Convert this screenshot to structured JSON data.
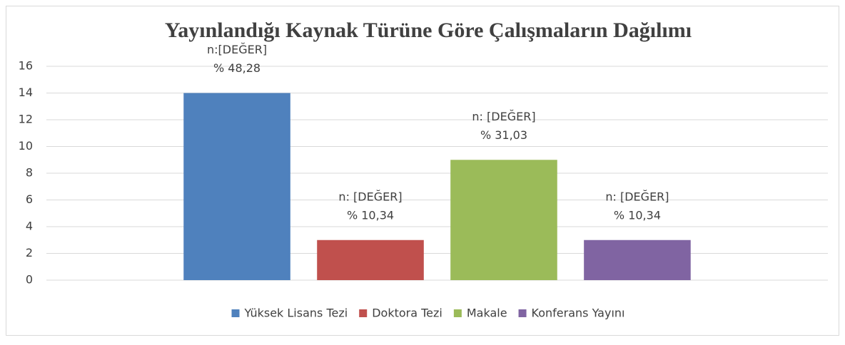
{
  "chart_data": {
    "type": "bar",
    "title": "Yayınlandığı Kaynak Türüne Göre Çalışmaların Dağılımı",
    "categories": [
      null
    ],
    "series": [
      {
        "name": "Yüksek Lisans Tezi",
        "color": "#4f81bd",
        "values": [
          14
        ],
        "label_lines": [
          "n:[DEĞER]",
          "% 48,28"
        ]
      },
      {
        "name": "Doktora Tezi",
        "color": "#c0504d",
        "values": [
          3
        ],
        "label_lines": [
          "n: [DEĞER]",
          "% 10,34"
        ]
      },
      {
        "name": "Makale",
        "color": "#9bbb59",
        "values": [
          9
        ],
        "label_lines": [
          "n: [DEĞER]",
          "% 31,03"
        ]
      },
      {
        "name": "Konferans Yayını",
        "color": "#8064a2",
        "values": [
          3
        ],
        "label_lines": [
          "n: [DEĞER]",
          "% 10,34"
        ]
      }
    ],
    "ylim": [
      0,
      16
    ],
    "yticks": [
      0,
      2,
      4,
      6,
      8,
      10,
      12,
      14,
      16
    ],
    "grid": true,
    "legend": "bottom"
  }
}
